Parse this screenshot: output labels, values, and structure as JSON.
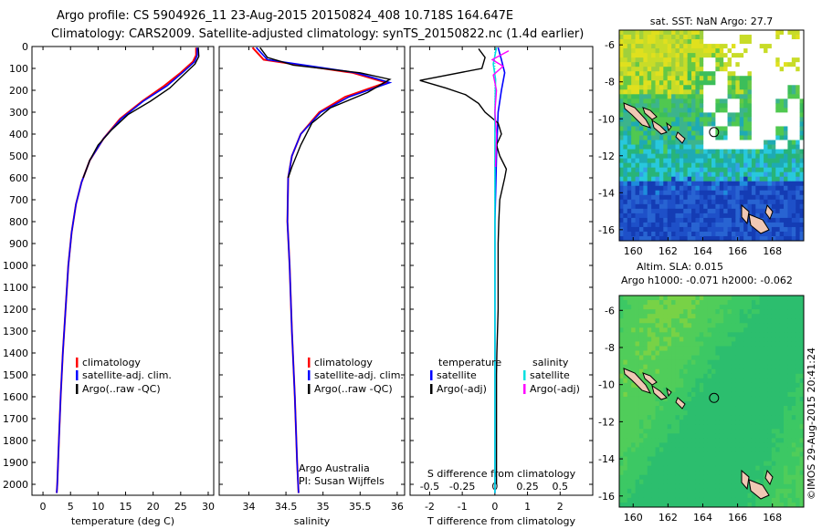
{
  "header": {
    "line1": "Argo profile: CS 5904926_11 23-Aug-2015 20150824_408 10.718S 164.647E",
    "line2": "Climatology: CARS2009. Satellite-adjusted climatology: synTS_20150822.nc (1.4d earlier)"
  },
  "colors": {
    "climatology": "#ff0000",
    "satellite": "#0000ff",
    "argo": "#000000",
    "sat_salinity": "#00e0e0",
    "argo_salinity_adj": "#ff00ff",
    "land": "#f0c8b4"
  },
  "chart_data": [
    {
      "type": "line",
      "name_key": "temperature",
      "xlabel": "temperature (deg C)",
      "xlim": [
        -2,
        31
      ],
      "xticks": [
        0,
        5,
        10,
        15,
        20,
        25,
        30
      ],
      "ylim": [
        0,
        2050
      ],
      "yticks": [
        0,
        100,
        200,
        300,
        400,
        500,
        600,
        700,
        800,
        900,
        1000,
        1100,
        1200,
        1300,
        1400,
        1500,
        1600,
        1700,
        1800,
        1900,
        2000
      ],
      "legend": [
        "climatology",
        "satellite-adj. clim.",
        "Argo(..raw -QC)"
      ],
      "series": [
        {
          "name": "climatology",
          "points": [
            [
              27.8,
              5
            ],
            [
              27.8,
              40
            ],
            [
              27.2,
              70
            ],
            [
              25,
              120
            ],
            [
              22,
              180
            ],
            [
              18,
              250
            ],
            [
              14,
              330
            ],
            [
              11,
              420
            ],
            [
              8.5,
              520
            ],
            [
              7,
              620
            ],
            [
              6,
              720
            ],
            [
              5.2,
              850
            ],
            [
              4.6,
              1000
            ],
            [
              4.1,
              1200
            ],
            [
              3.6,
              1400
            ],
            [
              3.2,
              1600
            ],
            [
              2.9,
              1800
            ],
            [
              2.6,
              2000
            ],
            [
              2.5,
              2040
            ]
          ]
        },
        {
          "name": "satellite-adj. clim.",
          "points": [
            [
              28,
              5
            ],
            [
              28,
              40
            ],
            [
              27.5,
              70
            ],
            [
              25.3,
              120
            ],
            [
              22.5,
              180
            ],
            [
              18.2,
              250
            ],
            [
              14.2,
              330
            ],
            [
              11,
              420
            ],
            [
              8.5,
              520
            ],
            [
              7,
              620
            ],
            [
              6,
              720
            ],
            [
              5.2,
              850
            ],
            [
              4.6,
              1000
            ],
            [
              4.1,
              1200
            ],
            [
              3.6,
              1400
            ],
            [
              3.2,
              1600
            ],
            [
              2.9,
              1800
            ],
            [
              2.6,
              2000
            ],
            [
              2.5,
              2040
            ]
          ]
        },
        {
          "name": "Argo(..raw -QC)",
          "points": [
            [
              28.2,
              5
            ],
            [
              28.3,
              45
            ],
            [
              27.6,
              80
            ],
            [
              25.5,
              130
            ],
            [
              23,
              190
            ],
            [
              19.5,
              250
            ],
            [
              15.5,
              310
            ],
            [
              12.5,
              380
            ],
            [
              10,
              450
            ],
            [
              8.5,
              520
            ],
            [
              7.3,
              600
            ]
          ]
        }
      ]
    },
    {
      "type": "line",
      "name_key": "salinity",
      "xlabel": "salinity",
      "xlim": [
        33.6,
        36.1
      ],
      "xticks": [
        34,
        34.5,
        35,
        35.5,
        36
      ],
      "ylim": [
        0,
        2050
      ],
      "legend": [
        "climatology",
        "satellite-adj. clim.",
        "Argo(..raw -QC)"
      ],
      "annotation": [
        "Argo Australia",
        "PI: Susan Wijffels"
      ],
      "series": [
        {
          "name": "climatology",
          "points": [
            [
              34.05,
              5
            ],
            [
              34.2,
              60
            ],
            [
              35.4,
              120
            ],
            [
              35.85,
              165
            ],
            [
              35.3,
              230
            ],
            [
              34.95,
              300
            ],
            [
              34.7,
              400
            ],
            [
              34.58,
              500
            ],
            [
              34.53,
              600
            ],
            [
              34.52,
              800
            ],
            [
              34.55,
              1000
            ],
            [
              34.58,
              1300
            ],
            [
              34.62,
              1600
            ],
            [
              34.65,
              1900
            ],
            [
              34.67,
              2040
            ]
          ]
        },
        {
          "name": "satellite-adj. clim.",
          "points": [
            [
              34.1,
              5
            ],
            [
              34.25,
              60
            ],
            [
              35.45,
              120
            ],
            [
              35.9,
              165
            ],
            [
              35.35,
              230
            ],
            [
              34.97,
              300
            ],
            [
              34.7,
              400
            ],
            [
              34.58,
              500
            ],
            [
              34.53,
              600
            ],
            [
              34.52,
              800
            ],
            [
              34.55,
              1000
            ],
            [
              34.58,
              1300
            ],
            [
              34.62,
              1600
            ],
            [
              34.65,
              1900
            ],
            [
              34.67,
              2040
            ]
          ]
        },
        {
          "name": "Argo(..raw -QC)",
          "points": [
            [
              34.15,
              5
            ],
            [
              34.25,
              50
            ],
            [
              34.6,
              85
            ],
            [
              35.5,
              120
            ],
            [
              35.9,
              150
            ],
            [
              35.6,
              210
            ],
            [
              35.1,
              280
            ],
            [
              34.85,
              350
            ],
            [
              34.7,
              450
            ],
            [
              34.58,
              550
            ],
            [
              34.53,
              600
            ]
          ]
        }
      ]
    },
    {
      "type": "line",
      "name_key": "difference",
      "xlabel": "T difference from climatology",
      "xlim": [
        -2.6,
        3.0
      ],
      "xticks": [
        -2,
        -1,
        0,
        1,
        2
      ],
      "top_axis_label": "S difference from climatology",
      "top_xticks": [
        -0.5,
        -0.25,
        0,
        0.25,
        0.5
      ],
      "ylim": [
        0,
        2050
      ],
      "legend_titles": [
        "temperature",
        "salinity"
      ],
      "legend": [
        "satellite",
        "Argo(-adj)",
        "satellite",
        "Argo(-adj)"
      ],
      "series": [
        {
          "name": "satellite",
          "points": [
            [
              0.1,
              5
            ],
            [
              0.2,
              60
            ],
            [
              0.3,
              120
            ],
            [
              0.2,
              200
            ],
            [
              0.1,
              300
            ],
            [
              0.05,
              500
            ],
            [
              0,
              800
            ],
            [
              0,
              1200
            ],
            [
              0,
              1600
            ],
            [
              0,
              2040
            ]
          ]
        },
        {
          "name": "Argo(-adj)",
          "points": [
            [
              -0.5,
              10
            ],
            [
              -0.3,
              50
            ],
            [
              -0.4,
              100
            ],
            [
              -2.3,
              155
            ],
            [
              -1.5,
              190
            ],
            [
              -0.9,
              220
            ],
            [
              -0.5,
              260
            ],
            [
              -0.3,
              300
            ],
            [
              0.1,
              350
            ],
            [
              0.2,
              400
            ],
            [
              0.05,
              450
            ],
            [
              0.15,
              500
            ],
            [
              0.35,
              560
            ],
            [
              0.3,
              600
            ],
            [
              0.15,
              700
            ],
            [
              0.12,
              800
            ],
            [
              0.1,
              900
            ],
            [
              0.1,
              1000
            ],
            [
              0.1,
              1100
            ],
            [
              0.1,
              1200
            ],
            [
              0.08,
              1300
            ],
            [
              0.06,
              1400
            ],
            [
              0.05,
              1500
            ],
            [
              0.05,
              1600
            ],
            [
              0.05,
              1700
            ],
            [
              0.05,
              1800
            ],
            [
              0.05,
              1900
            ],
            [
              0.05,
              2000
            ]
          ]
        },
        {
          "name": "satellite",
          "points": [
            [
              0.05,
              5
            ],
            [
              -0.05,
              80
            ],
            [
              0.02,
              150
            ],
            [
              0,
              300
            ],
            [
              0,
              600
            ],
            [
              0,
              1000
            ],
            [
              0,
              2040
            ]
          ]
        },
        {
          "name": "Argo(-adj)",
          "points": [
            [
              0.42,
              20
            ],
            [
              -0.08,
              60
            ],
            [
              0.25,
              90
            ],
            [
              -0.05,
              130
            ],
            [
              0.05,
              200
            ],
            [
              0,
              300
            ],
            [
              0.05,
              400
            ],
            [
              0.02,
              550
            ]
          ]
        }
      ]
    },
    {
      "type": "heatmap",
      "name_key": "sst",
      "title": "sat. SST: NaN Argo: 27.7",
      "xlim": [
        159.2,
        169.8
      ],
      "ylim": [
        -16.6,
        -5.2
      ],
      "xticks": [
        160,
        162,
        164,
        166,
        168
      ],
      "yticks": [
        -6,
        -8,
        -10,
        -12,
        -14,
        -16
      ],
      "argo_location": [
        164.647,
        -10.718
      ]
    },
    {
      "type": "heatmap",
      "name_key": "sla",
      "title_lines": [
        "Altim. SLA: 0.015",
        "Argo h1000: -0.071 h2000: -0.062"
      ],
      "xlim": [
        159.2,
        169.8
      ],
      "ylim": [
        -16.6,
        -5.2
      ],
      "xticks": [
        160,
        162,
        164,
        166,
        168
      ],
      "yticks": [
        -6,
        -8,
        -10,
        -12,
        -14,
        -16
      ],
      "argo_location": [
        164.647,
        -10.718
      ]
    }
  ],
  "footer": {
    "credit": "©IMOS 29-Aug-2015 20:41:24"
  }
}
